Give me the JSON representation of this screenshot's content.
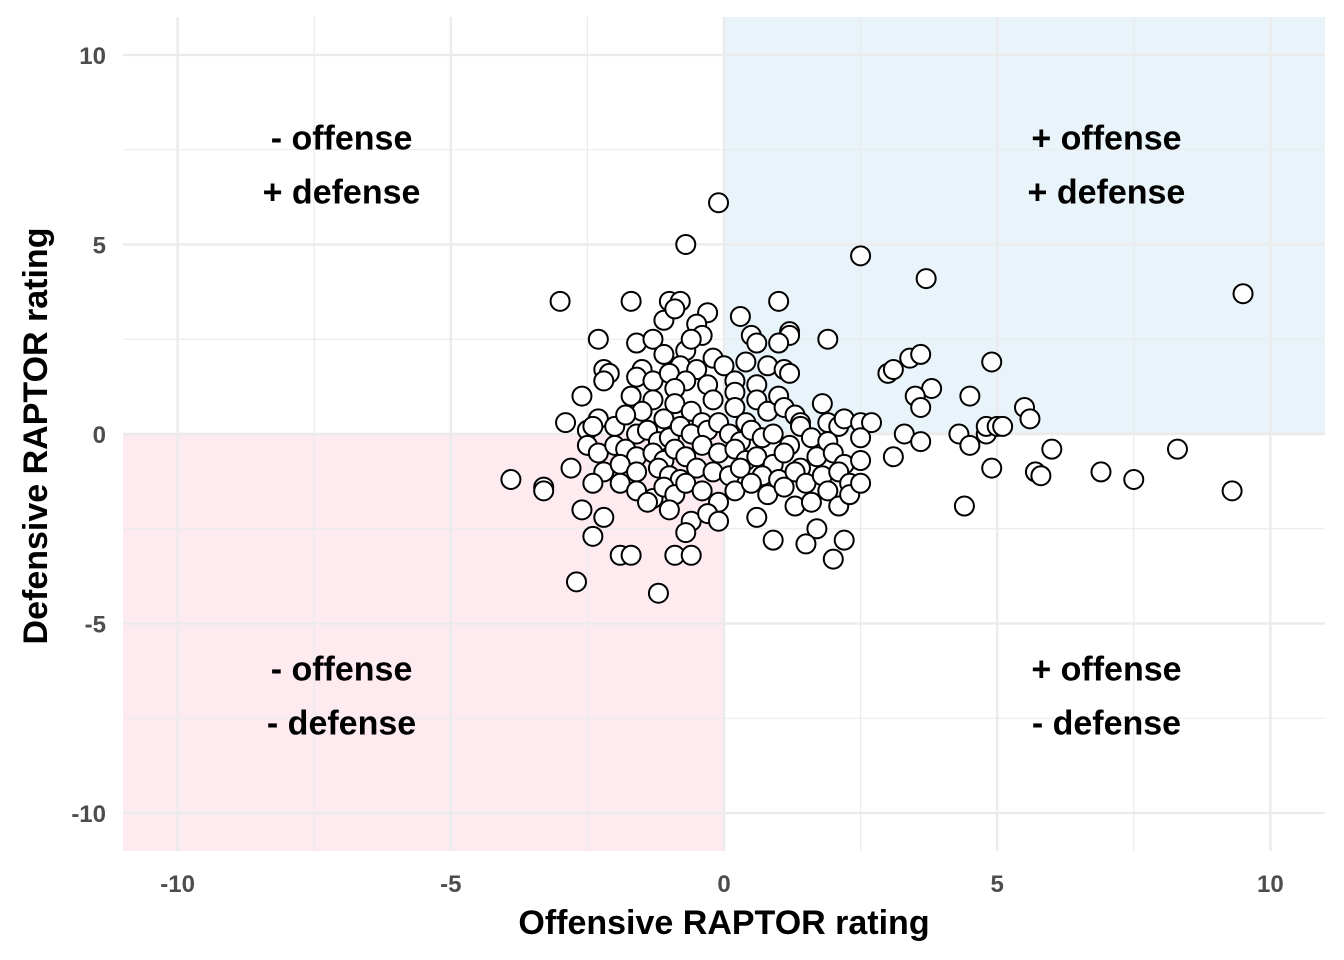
{
  "chart_data": {
    "type": "scatter",
    "title": "",
    "xlabel": "Offensive RAPTOR rating",
    "ylabel": "Defensive RAPTOR rating",
    "xlim": [
      -11,
      11
    ],
    "ylim": [
      -11,
      11
    ],
    "xticks": [
      -10,
      -5,
      0,
      5,
      10
    ],
    "yticks": [
      -10,
      -5,
      0,
      5,
      10
    ],
    "grid": true,
    "colors": {
      "positive_quadrant": "#e8f3fa",
      "negative_quadrant": "#fdebef",
      "grid": "#ebebeb",
      "point_fill": "#ffffff",
      "point_stroke": "#000000"
    },
    "quadrants": [
      {
        "name": "top-left",
        "line1": "- offense",
        "line2": "+ defense",
        "x": -7,
        "y": 7.5
      },
      {
        "name": "top-right",
        "line1": "+ offense",
        "line2": "+ defense",
        "x": 7,
        "y": 7.5
      },
      {
        "name": "bottom-left",
        "line1": "- offense",
        "line2": "- defense",
        "x": -7,
        "y": -6.5
      },
      {
        "name": "bottom-right",
        "line1": "+ offense",
        "line2": "- defense",
        "x": 7,
        "y": -6.5
      }
    ],
    "points": [
      [
        -0.1,
        6.1
      ],
      [
        -0.7,
        5.0
      ],
      [
        2.5,
        4.7
      ],
      [
        3.7,
        4.1
      ],
      [
        9.5,
        3.7
      ],
      [
        -3.0,
        3.5
      ],
      [
        -1.7,
        3.5
      ],
      [
        -1.0,
        3.5
      ],
      [
        -0.8,
        3.5
      ],
      [
        1.0,
        3.5
      ],
      [
        -1.6,
        2.4
      ],
      [
        -2.3,
        2.5
      ],
      [
        -1.1,
        3.0
      ],
      [
        -0.9,
        3.3
      ],
      [
        -0.3,
        3.2
      ],
      [
        -0.5,
        2.9
      ],
      [
        -1.3,
        2.5
      ],
      [
        -0.7,
        2.2
      ],
      [
        -0.4,
        2.6
      ],
      [
        -0.6,
        2.5
      ],
      [
        0.3,
        3.1
      ],
      [
        0.5,
        2.6
      ],
      [
        0.6,
        2.4
      ],
      [
        1.2,
        2.7
      ],
      [
        1.2,
        2.6
      ],
      [
        1.9,
        2.5
      ],
      [
        1.0,
        2.4
      ],
      [
        -1.1,
        2.1
      ],
      [
        -0.8,
        1.8
      ],
      [
        -0.5,
        1.7
      ],
      [
        -0.2,
        2.0
      ],
      [
        0.0,
        1.8
      ],
      [
        0.4,
        1.9
      ],
      [
        0.8,
        1.8
      ],
      [
        1.1,
        1.7
      ],
      [
        1.2,
        1.6
      ],
      [
        -2.2,
        1.7
      ],
      [
        -2.1,
        1.6
      ],
      [
        -2.2,
        1.4
      ],
      [
        -1.5,
        1.7
      ],
      [
        -1.6,
        1.5
      ],
      [
        -1.3,
        1.4
      ],
      [
        -1.0,
        1.6
      ],
      [
        -0.7,
        1.4
      ],
      [
        -0.3,
        1.3
      ],
      [
        -0.9,
        1.2
      ],
      [
        0.2,
        1.4
      ],
      [
        0.6,
        1.3
      ],
      [
        0.2,
        1.1
      ],
      [
        3.0,
        1.6
      ],
      [
        3.1,
        1.7
      ],
      [
        3.4,
        2.0
      ],
      [
        3.6,
        2.1
      ],
      [
        4.9,
        1.9
      ],
      [
        3.8,
        1.2
      ],
      [
        3.5,
        1.0
      ],
      [
        3.6,
        0.7
      ],
      [
        4.5,
        1.0
      ],
      [
        5.5,
        0.7
      ],
      [
        5.6,
        0.4
      ],
      [
        -2.6,
        1.0
      ],
      [
        -1.7,
        1.0
      ],
      [
        -1.3,
        0.9
      ],
      [
        -1.5,
        0.6
      ],
      [
        -1.1,
        0.4
      ],
      [
        -0.9,
        0.8
      ],
      [
        -0.6,
        0.6
      ],
      [
        -0.4,
        0.3
      ],
      [
        -0.2,
        0.9
      ],
      [
        0.2,
        0.7
      ],
      [
        0.4,
        0.3
      ],
      [
        0.6,
        0.9
      ],
      [
        0.8,
        0.6
      ],
      [
        1.0,
        1.0
      ],
      [
        1.1,
        0.7
      ],
      [
        1.3,
        0.5
      ],
      [
        1.4,
        0.3
      ],
      [
        1.8,
        0.8
      ],
      [
        1.9,
        0.3
      ],
      [
        2.1,
        0.2
      ],
      [
        2.2,
        0.4
      ],
      [
        2.5,
        0.3
      ],
      [
        2.7,
        0.3
      ],
      [
        -2.9,
        0.3
      ],
      [
        -2.5,
        0.1
      ],
      [
        -2.3,
        0.4
      ],
      [
        -2.4,
        0.2
      ],
      [
        -2.0,
        0.2
      ],
      [
        -1.8,
        0.5
      ],
      [
        -1.6,
        0.0
      ],
      [
        -1.4,
        0.1
      ],
      [
        -1.2,
        -0.2
      ],
      [
        -1.0,
        -0.1
      ],
      [
        -0.8,
        0.2
      ],
      [
        -0.6,
        0.0
      ],
      [
        -0.3,
        0.1
      ],
      [
        -0.1,
        0.3
      ],
      [
        0.1,
        0.0
      ],
      [
        0.3,
        -0.2
      ],
      [
        0.5,
        0.1
      ],
      [
        0.7,
        -0.1
      ],
      [
        0.9,
        0.0
      ],
      [
        1.2,
        -0.3
      ],
      [
        1.4,
        0.2
      ],
      [
        1.6,
        -0.1
      ],
      [
        -2.5,
        -0.3
      ],
      [
        -2.3,
        -0.5
      ],
      [
        -2.0,
        -0.3
      ],
      [
        -1.8,
        -0.4
      ],
      [
        -1.6,
        -0.6
      ],
      [
        -1.3,
        -0.5
      ],
      [
        -1.1,
        -0.7
      ],
      [
        -0.9,
        -0.4
      ],
      [
        -0.7,
        -0.6
      ],
      [
        -0.4,
        -0.3
      ],
      [
        -0.1,
        -0.5
      ],
      [
        0.2,
        -0.4
      ],
      [
        0.4,
        -0.7
      ],
      [
        0.6,
        -0.6
      ],
      [
        0.9,
        -0.8
      ],
      [
        1.1,
        -0.5
      ],
      [
        1.4,
        -0.9
      ],
      [
        1.7,
        -0.6
      ],
      [
        1.9,
        -0.2
      ],
      [
        2.0,
        -0.5
      ],
      [
        2.2,
        -0.8
      ],
      [
        2.5,
        -0.7
      ],
      [
        2.5,
        -0.1
      ],
      [
        3.1,
        -0.6
      ],
      [
        3.3,
        0.0
      ],
      [
        3.6,
        -0.2
      ],
      [
        4.3,
        0.0
      ],
      [
        4.5,
        -0.3
      ],
      [
        4.8,
        0.0
      ],
      [
        4.8,
        0.2
      ],
      [
        5.0,
        0.2
      ],
      [
        5.1,
        0.2
      ],
      [
        6.0,
        -0.4
      ],
      [
        8.3,
        -0.4
      ],
      [
        -2.8,
        -0.9
      ],
      [
        -2.2,
        -1.0
      ],
      [
        -1.9,
        -0.8
      ],
      [
        -1.6,
        -1.0
      ],
      [
        -1.2,
        -0.9
      ],
      [
        -1.0,
        -1.1
      ],
      [
        -0.8,
        -1.2
      ],
      [
        -0.5,
        -0.9
      ],
      [
        -0.2,
        -1.0
      ],
      [
        0.1,
        -1.1
      ],
      [
        0.3,
        -0.9
      ],
      [
        0.7,
        -1.1
      ],
      [
        1.0,
        -1.2
      ],
      [
        1.3,
        -1.0
      ],
      [
        1.5,
        -1.3
      ],
      [
        1.8,
        -1.1
      ],
      [
        2.1,
        -1.0
      ],
      [
        2.3,
        -1.3
      ],
      [
        4.9,
        -0.9
      ],
      [
        5.7,
        -1.0
      ],
      [
        5.8,
        -1.1
      ],
      [
        6.9,
        -1.0
      ],
      [
        7.5,
        -1.2
      ],
      [
        9.3,
        -1.5
      ],
      [
        -3.9,
        -1.2
      ],
      [
        -3.3,
        -1.4
      ],
      [
        -3.3,
        -1.5
      ],
      [
        -2.4,
        -1.3
      ],
      [
        -1.9,
        -1.3
      ],
      [
        -1.6,
        -1.5
      ],
      [
        -1.3,
        -1.7
      ],
      [
        -1.1,
        -1.4
      ],
      [
        -0.9,
        -1.6
      ],
      [
        -0.7,
        -1.3
      ],
      [
        -0.4,
        -1.5
      ],
      [
        -0.1,
        -1.8
      ],
      [
        0.2,
        -1.5
      ],
      [
        0.5,
        -1.3
      ],
      [
        0.8,
        -1.6
      ],
      [
        1.1,
        -1.4
      ],
      [
        1.3,
        -1.9
      ],
      [
        1.6,
        -1.8
      ],
      [
        1.9,
        -1.5
      ],
      [
        2.1,
        -1.9
      ],
      [
        2.3,
        -1.6
      ],
      [
        2.5,
        -1.3
      ],
      [
        4.4,
        -1.9
      ],
      [
        -2.6,
        -2.0
      ],
      [
        -2.2,
        -2.2
      ],
      [
        -1.4,
        -1.8
      ],
      [
        -1.0,
        -2.0
      ],
      [
        -0.6,
        -2.3
      ],
      [
        -0.3,
        -2.1
      ],
      [
        -0.1,
        -2.3
      ],
      [
        0.6,
        -2.2
      ],
      [
        1.7,
        -2.5
      ],
      [
        -2.4,
        -2.7
      ],
      [
        -0.7,
        -2.6
      ],
      [
        0.9,
        -2.8
      ],
      [
        1.5,
        -2.9
      ],
      [
        2.2,
        -2.8
      ],
      [
        -1.9,
        -3.2
      ],
      [
        -1.7,
        -3.2
      ],
      [
        -0.9,
        -3.2
      ],
      [
        -0.6,
        -3.2
      ],
      [
        2.0,
        -3.3
      ],
      [
        -2.7,
        -3.9
      ],
      [
        -1.2,
        -4.2
      ]
    ]
  }
}
